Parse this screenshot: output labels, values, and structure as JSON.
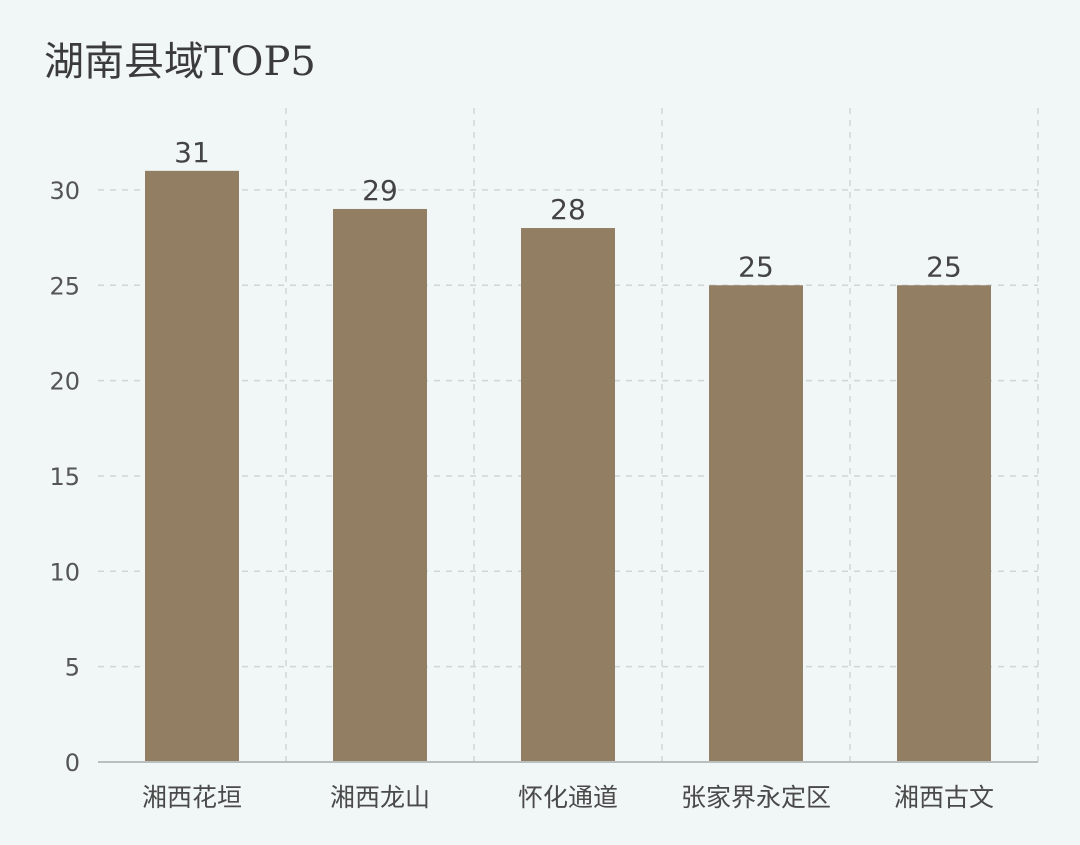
{
  "chart_data": {
    "type": "bar",
    "title": "湖南县域TOP5",
    "categories": [
      "湘西花垣",
      "湘西龙山",
      "怀化通道",
      "张家界永定区",
      "湘西古文"
    ],
    "values": [
      31,
      29,
      28,
      25,
      25
    ],
    "xlabel": "",
    "ylabel": "",
    "ylim": [
      0,
      31
    ],
    "yticks": [
      0,
      5,
      10,
      15,
      20,
      25,
      30
    ],
    "grid": true,
    "bar_color": "#917e63"
  }
}
